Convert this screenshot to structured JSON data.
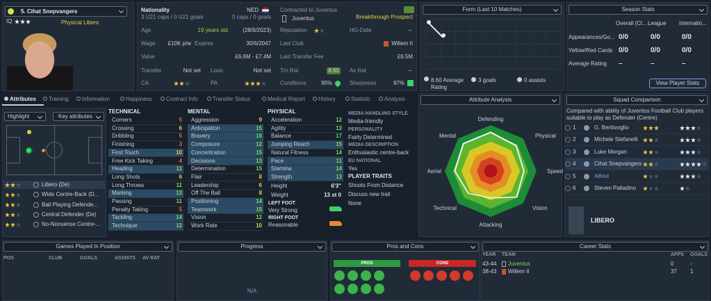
{
  "player": {
    "name": "5. Cihat Snepvangers",
    "iq": "IQ",
    "role": "Physical Libero"
  },
  "info": {
    "nationality_label": "Nationality",
    "nationality": "NED",
    "youth_caps": "3 U21 caps / 0 U21 goals",
    "caps": "0 caps / 0 goals",
    "contract": "Contracted to Juventus",
    "prospect": "Breakthrough Prospect",
    "club": "Juventus",
    "age_label": "Age",
    "age": "19 years old",
    "dob": "(28/9/2023)",
    "reputation_label": "Reputation",
    "hg_label": "HG-Date",
    "hg": "–",
    "wage_label": "Wage",
    "wage": "£10K p/w",
    "expires_label": "Expires",
    "expires": "30/6/2047",
    "last_club_label": "Last Club",
    "last_club": "Willem II",
    "value_label": "Value",
    "value": "£6.6M - £7.4M",
    "fee_label": "Last Transfer Fee",
    "fee": "£6.5M",
    "transfer_label": "Transfer",
    "transfer": "Not set",
    "loan_label": "Loan",
    "loan": "Not set",
    "trn_label": "Trn Rat",
    "trn": "8.60",
    "av_label": "Av Rat",
    "av": "–",
    "ca_label": "CA",
    "pa_label": "PA",
    "conditions_label": "Conditions",
    "conditions": "95%",
    "sharpness_label": "Sharpness",
    "sharpness": "97%"
  },
  "form": {
    "title": "Form (Last 10 Matches)",
    "rating": "8.60 Average Rating",
    "goals": "3 goals",
    "assists": "0 assists"
  },
  "season": {
    "title": "Season Stats",
    "columns": [
      "Overall (Cl...",
      "League",
      "Internatio..."
    ],
    "rows": [
      {
        "label": "Appearances/Go...",
        "values": [
          "0/0",
          "0/0",
          "0/0"
        ]
      },
      {
        "label": "Yellow/Red Cards",
        "values": [
          "0/0",
          "0/0",
          "0/0"
        ]
      },
      {
        "label": "Average Rating",
        "values": [
          "–",
          "–",
          "–"
        ]
      }
    ],
    "button": "View Player Stats"
  },
  "tabs": [
    "Attributes",
    "Training",
    "Information",
    "Happiness",
    "Contract Info",
    "Transfer Status",
    "Medical Report",
    "History",
    "Statistic",
    "Analysis"
  ],
  "positions": {
    "highlight": "Highlight",
    "filter": "Key attributes",
    "roles": [
      "Libero (De)",
      "Wide Centre-Back (D...",
      "Ball Playing Defende...",
      "Central Defender (De)",
      "No-Nonsense Centre-..."
    ]
  },
  "attributes": {
    "technical": {
      "title": "TECHNICAL",
      "items": [
        {
          "name": "Corners",
          "value": 5
        },
        {
          "name": "Crossing",
          "value": 6
        },
        {
          "name": "Dribbling",
          "value": 5
        },
        {
          "name": "Finishing",
          "value": 3
        },
        {
          "name": "First Touch",
          "value": 10,
          "key": true
        },
        {
          "name": "Free Kick Taking",
          "value": 4
        },
        {
          "name": "Heading",
          "value": 11,
          "key": true
        },
        {
          "name": "Long Shots",
          "value": 6
        },
        {
          "name": "Long Throws",
          "value": 11
        },
        {
          "name": "Marking",
          "value": 13,
          "key": true
        },
        {
          "name": "Passing",
          "value": 11
        },
        {
          "name": "Penalty Taking",
          "value": 5
        },
        {
          "name": "Tackling",
          "value": 14,
          "key": true
        },
        {
          "name": "Technique",
          "value": 12,
          "key": true
        }
      ]
    },
    "mental": {
      "title": "MENTAL",
      "items": [
        {
          "name": "Aggression",
          "value": 9
        },
        {
          "name": "Anticipation",
          "value": 15,
          "key": true
        },
        {
          "name": "Bravery",
          "value": 16,
          "key": true
        },
        {
          "name": "Composure",
          "value": 12,
          "key": true
        },
        {
          "name": "Concentration",
          "value": 15,
          "key": true
        },
        {
          "name": "Decisions",
          "value": 13,
          "key": true
        },
        {
          "name": "Determination",
          "value": 15
        },
        {
          "name": "Flair",
          "value": 8
        },
        {
          "name": "Leadership",
          "value": 6
        },
        {
          "name": "Off The Ball",
          "value": 8
        },
        {
          "name": "Positioning",
          "value": 14,
          "key": true
        },
        {
          "name": "Teamwork",
          "value": 15,
          "key": true
        },
        {
          "name": "Vision",
          "value": 12
        },
        {
          "name": "Work Rate",
          "value": 10
        }
      ]
    },
    "physical": {
      "title": "PHYSICAL",
      "items": [
        {
          "name": "Acceleration",
          "value": 12
        },
        {
          "name": "Agility",
          "value": 13
        },
        {
          "name": "Balance",
          "value": 17
        },
        {
          "name": "Jumping Reach",
          "value": 15,
          "key": true
        },
        {
          "name": "Natural Fitness",
          "value": 14
        },
        {
          "name": "Pace",
          "value": 11,
          "key": true
        },
        {
          "name": "Stamina",
          "value": 14,
          "key": true
        },
        {
          "name": "Strength",
          "value": 13,
          "key": true
        }
      ]
    }
  },
  "physique": {
    "height_label": "Height",
    "height": "6'3\"",
    "weight_label": "Weight",
    "weight": "13 st 0",
    "left_label": "LEFT FOOT",
    "left": "Very Strong",
    "right_label": "RIGHT FOOT",
    "right": "Reasonable"
  },
  "media": {
    "sections": [
      {
        "heading": "MEDIA HANDLING STYLE",
        "value": "Media-friendly"
      },
      {
        "heading": "PERSONALITY",
        "value": "Fairly Determined"
      },
      {
        "heading": "MEDIA DESCRIPTION",
        "value": "Enthusiastic centre-back"
      },
      {
        "heading": "EU NATIONAL",
        "value": "Yes"
      }
    ],
    "traits_title": "PLAYER TRAITS",
    "traits": [
      "Shoots From Distance",
      "Discuss new trait",
      "None"
    ]
  },
  "analysis": {
    "title": "Attribute Analysis",
    "axes": [
      "Defending",
      "Physical",
      "Speed",
      "Vision",
      "Attacking",
      "Technical",
      "Aerial",
      "Mental"
    ]
  },
  "squad": {
    "title": "Squad Comparison",
    "note": "Compared with ability of Juventus Football Club players suitable to play as Defender (Centre)",
    "players": [
      {
        "rank": 1,
        "name": "G. Bentivoglio"
      },
      {
        "rank": 2,
        "name": "Michele Stefanelli"
      },
      {
        "rank": 3,
        "name": "Luke Morgan"
      },
      {
        "rank": 4,
        "name": "Cihat Snepvangers"
      },
      {
        "rank": 5,
        "name": "Alfred"
      },
      {
        "rank": 6,
        "name": "Steven Palladino"
      }
    ],
    "role": "LIBERO"
  },
  "games": {
    "title": "Games Played In Position",
    "columns": [
      "POS",
      "CLUB",
      "GOALS",
      "ASSISTS",
      "AV RAT"
    ]
  },
  "progress": {
    "title": "Progress",
    "empty": "N/A"
  },
  "pros_cons": {
    "title": "Pros and Cons",
    "pros": "PROS",
    "cons": "CONS"
  },
  "career": {
    "title": "Career Stats",
    "columns": [
      "YEAR",
      "TEAM",
      "APPS",
      "GOALS"
    ],
    "rows": [
      [
        "43-44",
        "Juventus",
        "0",
        "-"
      ],
      [
        "38-43",
        "Willem II",
        "37",
        "1"
      ]
    ]
  }
}
